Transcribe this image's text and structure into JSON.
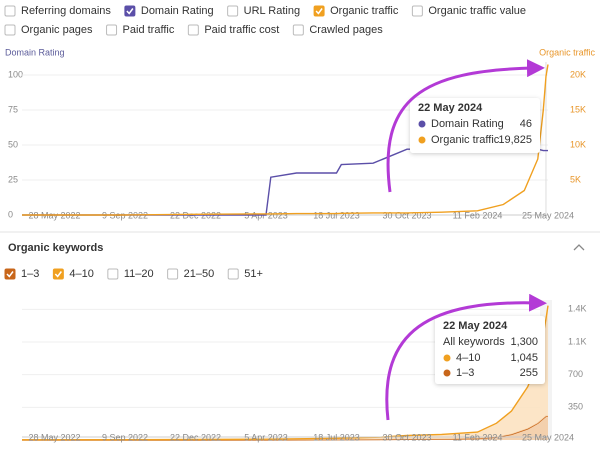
{
  "metric_toggles": [
    {
      "label": "Referring domains",
      "checked": false
    },
    {
      "label": "Domain Rating",
      "checked": true,
      "color": "#5b4fa8"
    },
    {
      "label": "URL Rating",
      "checked": false
    },
    {
      "label": "Organic traffic",
      "checked": true,
      "color": "#f0a020"
    },
    {
      "label": "Organic traffic value",
      "checked": false
    },
    {
      "label": "Organic pages",
      "checked": false
    },
    {
      "label": "Paid traffic",
      "checked": false
    },
    {
      "label": "Paid traffic cost",
      "checked": false
    },
    {
      "label": "Crawled pages",
      "checked": false
    }
  ],
  "keywords_section": {
    "title": "Organic keywords",
    "other_filters": [
      "11–20",
      "21–50",
      "51+"
    ]
  },
  "chart_data": [
    {
      "type": "line",
      "y_label": "Domain Rating",
      "y2_label": "Organic traffic",
      "x": [
        "2022-04-10",
        "2022-09-09",
        "2022-12-22",
        "2023-04-05",
        "2023-04-12",
        "2023-05-20",
        "2023-07-18",
        "2023-07-25",
        "2023-09-10",
        "2023-10-30",
        "2023-12-20",
        "2024-02-11",
        "2024-03-20",
        "2024-04-20",
        "2024-05-10",
        "2024-05-18",
        "2024-05-22",
        "2024-05-25"
      ],
      "xlim": [
        "2022-04-10",
        "2024-05-25"
      ],
      "xticks": [
        {
          "value": "2022-05-28",
          "label": "28 May 2022"
        },
        {
          "value": "2022-09-09",
          "label": "9 Sep 2022"
        },
        {
          "value": "2022-12-22",
          "label": "22 Dec 2022"
        },
        {
          "value": "2023-04-05",
          "label": "5 Apr 2023"
        },
        {
          "value": "2023-07-18",
          "label": "18 Jul 2023"
        },
        {
          "value": "2023-10-30",
          "label": "30 Oct 2023"
        },
        {
          "value": "2024-02-11",
          "label": "11 Feb 2024"
        },
        {
          "value": "2024-05-25",
          "label": "25 May 2024"
        }
      ],
      "ylim": [
        0,
        110
      ],
      "yticks": [
        0,
        25,
        50,
        75,
        100
      ],
      "y2lim": [
        0,
        22000
      ],
      "y2ticks": [
        {
          "value": 5000,
          "label": "5K"
        },
        {
          "value": 10000,
          "label": "10K"
        },
        {
          "value": 15000,
          "label": "15K"
        },
        {
          "value": 20000,
          "label": "20K"
        }
      ],
      "series": [
        {
          "name": "Domain Rating",
          "color": "#5b4fa8",
          "values": [
            0,
            0,
            0,
            0,
            27,
            30,
            30,
            36,
            37,
            47,
            47,
            48,
            48,
            47,
            47,
            46,
            46,
            46
          ]
        },
        {
          "name": "Organic traffic",
          "color": "#f0a020",
          "axis": "y2",
          "values": [
            0,
            0,
            100,
            150,
            150,
            200,
            200,
            250,
            300,
            300,
            400,
            600,
            1500,
            3500,
            8000,
            15000,
            19825,
            21500
          ]
        }
      ],
      "tooltip": {
        "title": "22 May 2024",
        "date": "2024-05-22",
        "values": [
          46,
          19825
        ],
        "value_labels": [
          "46",
          "19,825"
        ]
      }
    },
    {
      "type": "stacked-area",
      "x": [
        "2022-04-10",
        "2022-09-09",
        "2022-12-22",
        "2023-04-05",
        "2023-07-18",
        "2023-09-20",
        "2023-10-30",
        "2023-12-20",
        "2024-02-11",
        "2024-03-10",
        "2024-04-01",
        "2024-04-25",
        "2024-05-10",
        "2024-05-18",
        "2024-05-22",
        "2024-05-25"
      ],
      "xlim": [
        "2022-04-10",
        "2024-05-25"
      ],
      "xticks": [
        {
          "value": "2022-05-28",
          "label": "28 May 2022"
        },
        {
          "value": "2022-09-09",
          "label": "9 Sep 2022"
        },
        {
          "value": "2022-12-22",
          "label": "22 Dec 2022"
        },
        {
          "value": "2023-04-05",
          "label": "5 Apr 2023"
        },
        {
          "value": "2023-07-18",
          "label": "18 Jul 2023"
        },
        {
          "value": "2023-10-30",
          "label": "30 Oct 2023"
        },
        {
          "value": "2024-02-11",
          "label": "11 Feb 2024"
        },
        {
          "value": "2024-05-25",
          "label": "25 May 2024"
        }
      ],
      "ylim": [
        0,
        1500
      ],
      "yticks": [
        350,
        700,
        {
          "value": 1050,
          "label": "1.1K"
        },
        {
          "value": 1400,
          "label": "1.4K"
        }
      ],
      "series": [
        {
          "name": "1–3",
          "color": "#c8661a",
          "values": [
            0,
            0,
            0,
            1,
            3,
            5,
            8,
            10,
            15,
            30,
            60,
            120,
            180,
            230,
            255,
            255
          ]
        },
        {
          "name": "4–10",
          "color": "#f0a020",
          "values": [
            2,
            3,
            5,
            8,
            15,
            25,
            40,
            50,
            70,
            150,
            250,
            450,
            650,
            900,
            1045,
            1185
          ]
        }
      ],
      "tooltip": {
        "title": "22 May 2024",
        "date": "2024-05-22",
        "total_name": "All keywords",
        "total": 1300,
        "total_label": "1,300",
        "rows": [
          {
            "name": "4–10",
            "value": 1045,
            "label": "1,045"
          },
          {
            "name": "1–3",
            "value": 255
          }
        ]
      }
    }
  ]
}
